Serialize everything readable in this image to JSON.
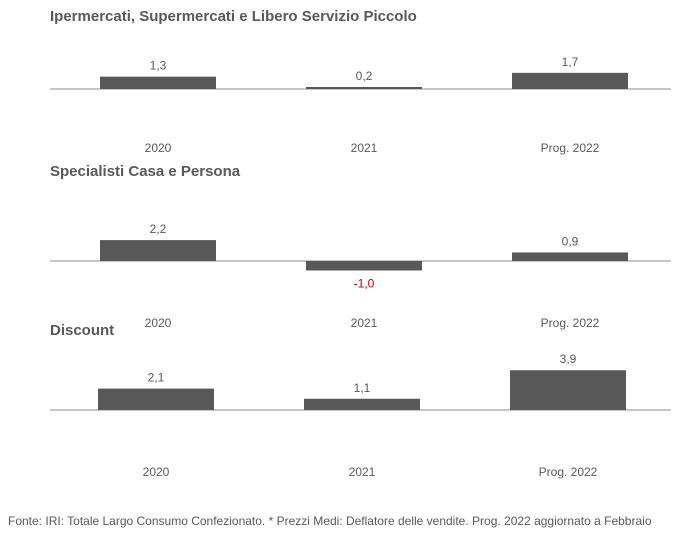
{
  "chart_data": [
    {
      "type": "bar",
      "title": "Ipermercati,  Supermercati e Libero Servizio Piccolo",
      "categories": [
        "2020",
        "2021",
        "Prog. 2022"
      ],
      "values": [
        1.3,
        0.2,
        1.7
      ],
      "labels": [
        "1,3",
        "0,2",
        "1,7"
      ],
      "bar_color": "#595959",
      "negative_label_color": "#c00000"
    },
    {
      "type": "bar",
      "title": "Specialisti  Casa e Persona",
      "categories": [
        "2020",
        "2021",
        "Prog. 2022"
      ],
      "values": [
        2.2,
        -1.0,
        0.9
      ],
      "labels": [
        "2,2",
        "-1,0",
        "0,9"
      ],
      "bar_color": "#595959",
      "negative_label_color": "#c00000"
    },
    {
      "type": "bar",
      "title": "Discount",
      "categories": [
        "2020",
        "2021",
        "Prog. 2022"
      ],
      "values": [
        2.1,
        1.1,
        3.9
      ],
      "labels": [
        "2,1",
        "1,1",
        "3,9"
      ],
      "bar_color": "#595959",
      "negative_label_color": "#c00000"
    }
  ],
  "footer": "Fonte: IRI: Totale Largo Consumo Confezionato.  * Prezzi  Medi: Deflatore delle vendite.  Prog. 2022 aggiornato a Febbraio"
}
